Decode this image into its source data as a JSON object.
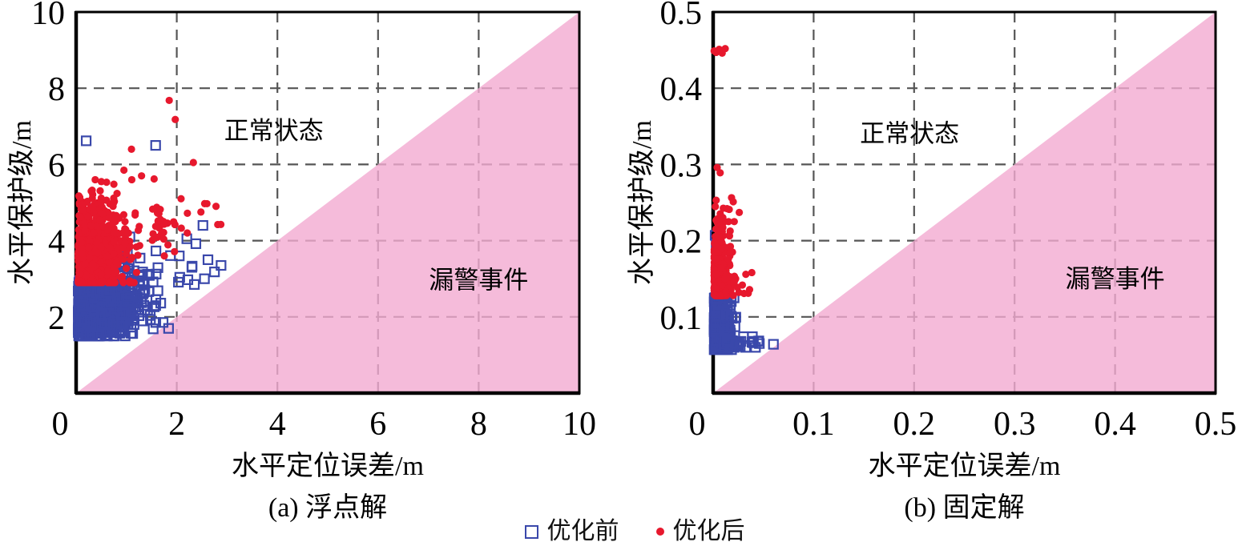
{
  "figure": {
    "legend": [
      {
        "label": "优化前",
        "marker": "open-square",
        "color": "#3a48ab"
      },
      {
        "label": "优化后",
        "marker": "dot",
        "color": "#e7182d"
      }
    ],
    "colors": {
      "missed_alarm_region_pink": "#f5bbda",
      "gridline_gray": "#555555",
      "axis_black": "#000000",
      "before_opt_blue": "#3a48ab",
      "after_opt_red": "#e7182d"
    }
  },
  "chart_data": [
    {
      "type": "scatter",
      "panel_id": "a",
      "caption": "(a) 浮点解",
      "xlabel": "水平定位误差/m",
      "ylabel": "水平保护级/m",
      "xlim": [
        0,
        10
      ],
      "ylim": [
        0,
        10
      ],
      "xticks": [
        2,
        4,
        6,
        8,
        10
      ],
      "yticks": [
        2,
        4,
        6,
        8,
        10
      ],
      "origin_label": "0",
      "grid": "dashed",
      "alarm_boundary": "y=x diagonal, pink fill below",
      "regions": [
        {
          "name": "normal",
          "label": "正常状态",
          "fx": 0.393,
          "fy": 0.311
        },
        {
          "name": "missed-alarm",
          "label": "漏警事件",
          "fx": 0.8,
          "fy": 0.703
        }
      ],
      "series": [
        {
          "name": "优化前",
          "marker": "open-square",
          "color": "#3a48ab",
          "clusters": [
            {
              "n": 800,
              "x0": 0.04,
              "sx": 0.5,
              "xmax": 2.1,
              "cy": 2.2,
              "sy": 0.38,
              "ymin": 1.5,
              "ymax": 2.95
            },
            {
              "n": 120,
              "x0": 0.5,
              "sx": 0.6,
              "xmax": 2.9,
              "cy": 2.9,
              "sy": 0.5,
              "ymin": 1.8,
              "ymax": 4.1
            }
          ],
          "outlier_points": [
            [
              0.2,
              6.62
            ],
            [
              1.58,
              6.5
            ],
            [
              0.18,
              4.85
            ],
            [
              0.45,
              4.7
            ],
            [
              2.52,
              4.4
            ],
            [
              2.2,
              4.05
            ],
            [
              2.38,
              3.92
            ],
            [
              2.05,
              3.6
            ],
            [
              2.62,
              3.5
            ],
            [
              2.3,
              3.3
            ],
            [
              2.75,
              3.18
            ],
            [
              2.55,
              3.0
            ],
            [
              2.35,
              2.85
            ],
            [
              2.88,
              3.35
            ]
          ]
        },
        {
          "name": "优化后",
          "marker": "dot",
          "color": "#e7182d",
          "clusters": [
            {
              "n": 800,
              "x0": 0.04,
              "sx": 0.4,
              "xmax": 1.7,
              "cy": 3.5,
              "sy": 0.42,
              "ymin": 2.9,
              "ymax": 4.5
            },
            {
              "n": 130,
              "x0": 0.05,
              "sx": 0.55,
              "xmax": 2.4,
              "cy": 4.6,
              "sy": 0.4,
              "ymin": 4.2,
              "ymax": 5.6
            },
            {
              "n": 30,
              "x0": 1.5,
              "sx": 0.55,
              "xmax": 2.95,
              "cy": 4.4,
              "sy": 0.35,
              "ymin": 3.6,
              "ymax": 5.1
            }
          ],
          "outlier_points": [
            [
              1.85,
              7.68
            ],
            [
              1.97,
              7.18
            ],
            [
              1.1,
              6.4
            ],
            [
              2.33,
              6.05
            ],
            [
              0.95,
              5.85
            ],
            [
              1.55,
              5.62
            ],
            [
              0.5,
              5.55
            ],
            [
              0.3,
              5.3
            ],
            [
              0.75,
              5.48
            ],
            [
              1.3,
              5.7
            ],
            [
              2.6,
              4.97
            ],
            [
              2.78,
              4.9
            ],
            [
              2.48,
              4.75
            ],
            [
              0.12,
              4.95
            ]
          ]
        }
      ]
    },
    {
      "type": "scatter",
      "panel_id": "b",
      "caption": "(b) 固定解",
      "xlabel": "水平定位误差/m",
      "ylabel": "水平保护级/m",
      "xlim": [
        0,
        0.5
      ],
      "ylim": [
        0,
        0.5
      ],
      "xticks": [
        0.1,
        0.2,
        0.3,
        0.4,
        0.5
      ],
      "yticks": [
        0.1,
        0.2,
        0.3,
        0.4,
        0.5
      ],
      "origin_label": "0",
      "grid": "dashed",
      "alarm_boundary": "y=x diagonal, pink fill below",
      "regions": [
        {
          "name": "normal",
          "label": "正常状态",
          "fx": 0.391,
          "fy": 0.319
        },
        {
          "name": "missed-alarm",
          "label": "漏警事件",
          "fx": 0.8,
          "fy": 0.7
        }
      ],
      "series": [
        {
          "name": "优化前",
          "marker": "open-square",
          "color": "#3a48ab",
          "clusters": [
            {
              "n": 480,
              "x0": 0.001,
              "sx": 0.007,
              "xmax": 0.024,
              "cy": 0.088,
              "sy": 0.02,
              "ymin": 0.057,
              "ymax": 0.125
            },
            {
              "n": 45,
              "x0": 0.01,
              "sx": 0.014,
              "xmax": 0.052,
              "cy": 0.066,
              "sy": 0.004,
              "ymin": 0.06,
              "ymax": 0.074
            }
          ],
          "outlier_points": [
            [
              0.002,
              0.207
            ],
            [
              0.003,
              0.196
            ],
            [
              0.06,
              0.064
            ],
            [
              0.046,
              0.065
            ],
            [
              0.04,
              0.066
            ],
            [
              0.013,
              0.104
            ],
            [
              0.018,
              0.101
            ],
            [
              0.022,
              0.099
            ]
          ]
        },
        {
          "name": "优化后",
          "marker": "dot",
          "color": "#e7182d",
          "clusters": [
            {
              "n": 520,
              "x0": 0.001,
              "sx": 0.006,
              "xmax": 0.022,
              "cy": 0.152,
              "sy": 0.016,
              "ymin": 0.128,
              "ymax": 0.188
            },
            {
              "n": 75,
              "x0": 0.001,
              "sx": 0.008,
              "xmax": 0.032,
              "cy": 0.2,
              "sy": 0.022,
              "ymin": 0.185,
              "ymax": 0.262
            },
            {
              "n": 22,
              "x0": 0.01,
              "sx": 0.013,
              "xmax": 0.05,
              "cy": 0.145,
              "sy": 0.012,
              "ymin": 0.128,
              "ymax": 0.168
            }
          ],
          "outlier_points": [
            [
              0.003,
              0.447
            ],
            [
              0.006,
              0.451
            ],
            [
              0.009,
              0.446
            ],
            [
              0.012,
              0.452
            ],
            [
              0.001,
              0.449
            ],
            [
              0.004,
              0.296
            ],
            [
              0.007,
              0.289
            ],
            [
              0.02,
              0.251
            ],
            [
              0.016,
              0.241
            ],
            [
              0.026,
              0.237
            ],
            [
              0.003,
              0.253
            ],
            [
              0.021,
              0.225
            ]
          ]
        }
      ]
    }
  ]
}
